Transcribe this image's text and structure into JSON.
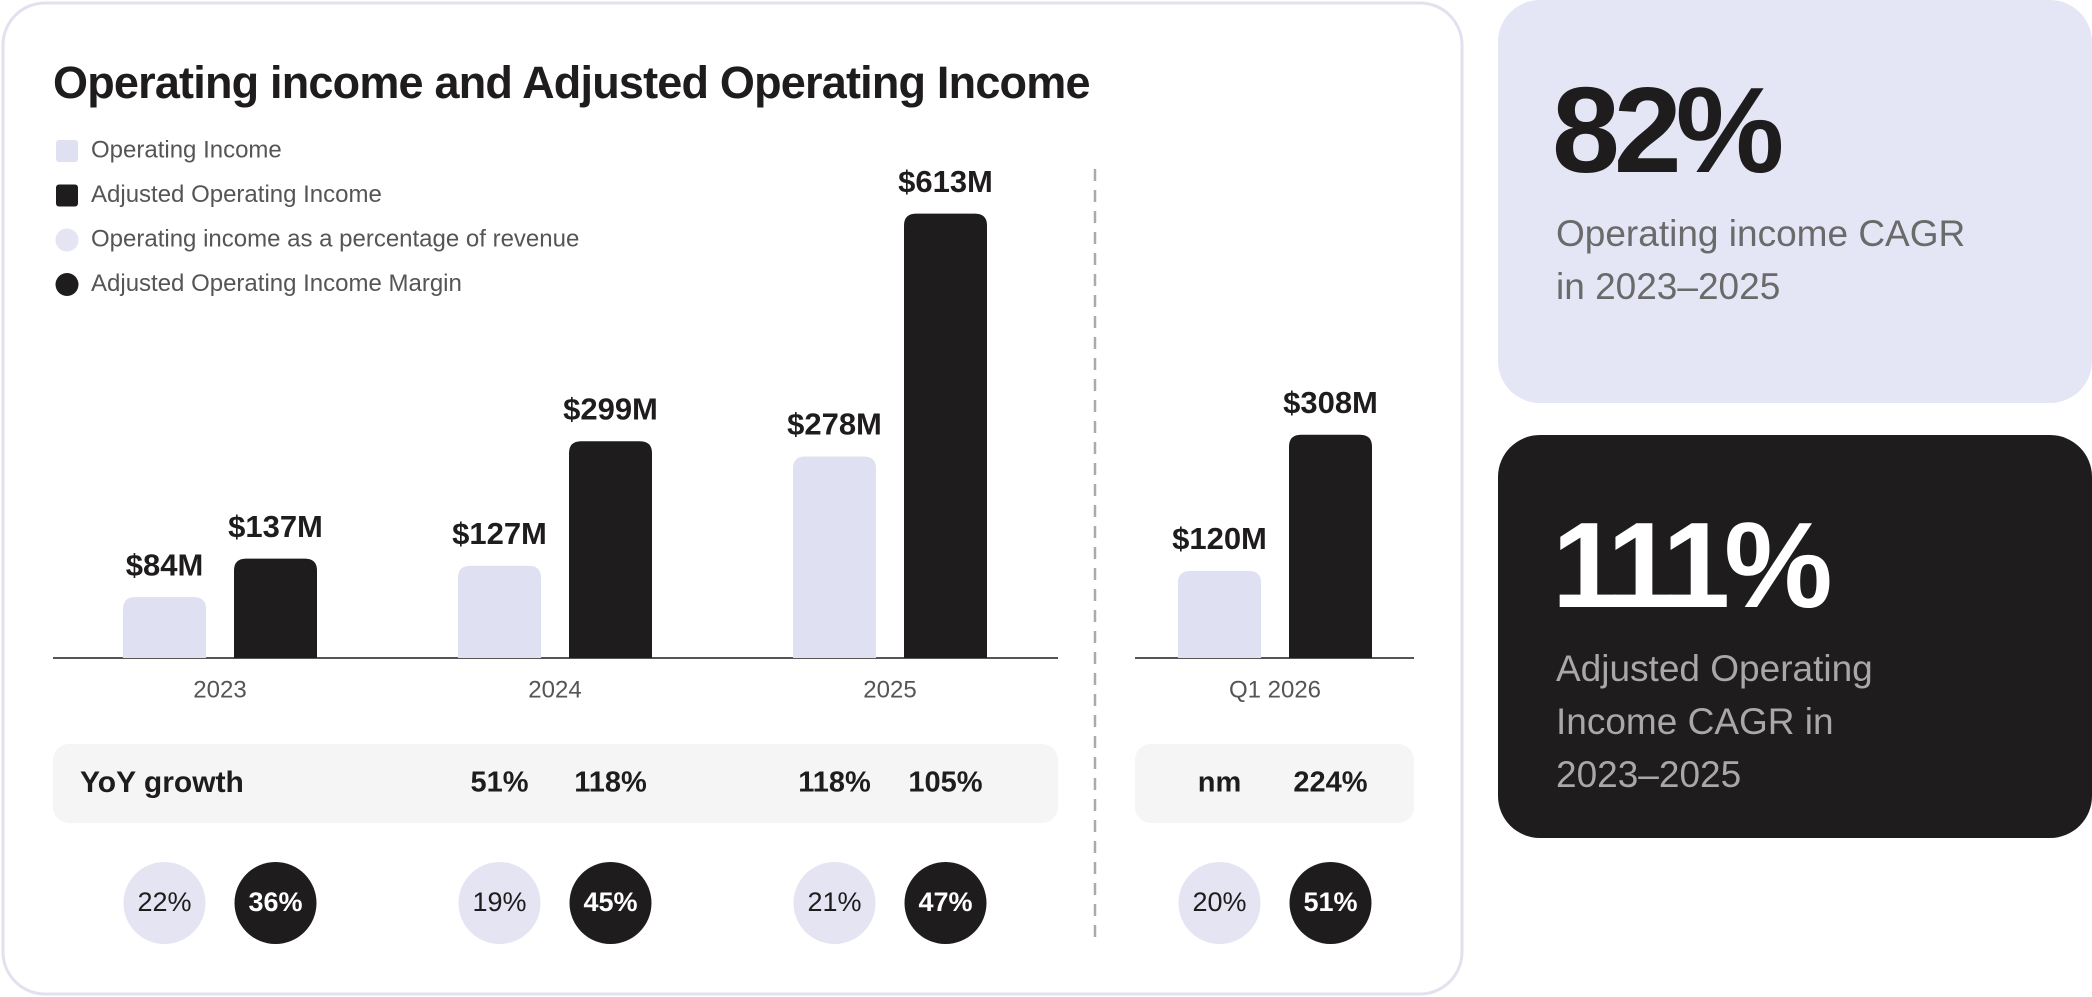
{
  "chart_data": {
    "type": "bar",
    "title": "Operating income and Adjusted Operating Income",
    "categories": [
      "2023",
      "2024",
      "2025",
      "Q1 2026"
    ],
    "series": [
      {
        "name": "Operating Income",
        "mark": "bar",
        "color": "#dfe0f1",
        "values": [
          84,
          127,
          278,
          120
        ],
        "value_labels": [
          "$84M",
          "$127M",
          "$278M",
          "$120M"
        ]
      },
      {
        "name": "Adjusted Operating Income",
        "mark": "bar",
        "color": "#1e1c1d",
        "values": [
          137,
          299,
          613,
          308
        ],
        "value_labels": [
          "$137M",
          "$299M",
          "$613M",
          "$308M"
        ]
      },
      {
        "name": "Operating income as a percentage of revenue",
        "mark": "circle",
        "color": "#e4e4f2",
        "values": [
          22,
          19,
          21,
          20
        ],
        "value_labels": [
          "22%",
          "19%",
          "21%",
          "20%"
        ]
      },
      {
        "name": "Adjusted Operating Income Margin",
        "mark": "circle",
        "color": "#1e1c1d",
        "values": [
          36,
          45,
          47,
          51
        ],
        "value_labels": [
          "36%",
          "45%",
          "47%",
          "51%"
        ]
      }
    ],
    "yoy_growth": {
      "label": "YoY growth",
      "series": [
        {
          "values": [
            null,
            51,
            118,
            null
          ],
          "value_labels": [
            null,
            "51%",
            "118%",
            "nm"
          ]
        },
        {
          "values": [
            null,
            118,
            105,
            224
          ],
          "value_labels": [
            null,
            "118%",
            "105%",
            "224%"
          ]
        }
      ]
    }
  },
  "cards": [
    {
      "value": "82%",
      "label_lines": [
        "Operating income CAGR",
        "in 2023–2025"
      ]
    },
    {
      "value": "111%",
      "label_lines": [
        "Adjusted Operating",
        "Income CAGR in",
        "2023–2025"
      ]
    }
  ]
}
